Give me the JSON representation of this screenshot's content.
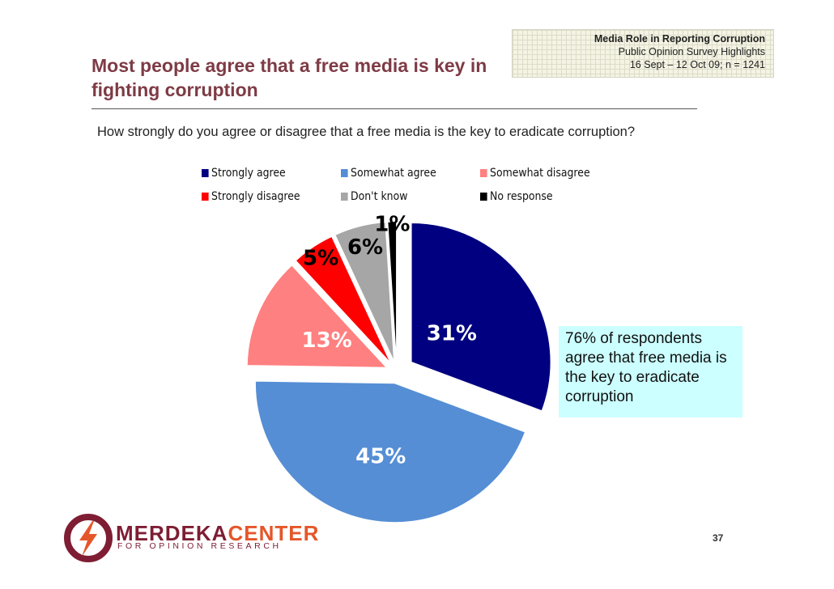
{
  "header": {
    "line1": "Media Role in Reporting Corruption",
    "line2": "Public Opinion Survey Highlights",
    "line3": "16 Sept – 12 Oct 09; n = 1241"
  },
  "title": "Most people agree that a free media is key in fighting corruption",
  "question": "How strongly do you agree or disagree that a free media is the key to eradicate corruption?",
  "chart_data": {
    "type": "pie",
    "title": "",
    "legend_position": "top",
    "labels": [
      "Strongly agree",
      "Somewhat agree",
      "Somewhat disagree",
      "Strongly disagree",
      "Don't know",
      "No response"
    ],
    "values": [
      31,
      45,
      13,
      5,
      6,
      1
    ],
    "data_labels": [
      "31%",
      "45%",
      "13%",
      "5%",
      "6%",
      "1%"
    ],
    "colors": [
      "#000080",
      "#558ed5",
      "#ff8080",
      "#ff0000",
      "#a6a6a6",
      "#000000"
    ],
    "exploded": true
  },
  "callout": "76% of respondents agree that free media is the key to eradicate corruption",
  "logo": {
    "word1": "MERDEKA",
    "word2": "CENTER",
    "subtitle": "FOR OPINION RESEARCH",
    "icon": "lightning-bolt-logo-icon"
  },
  "page_number": "37"
}
